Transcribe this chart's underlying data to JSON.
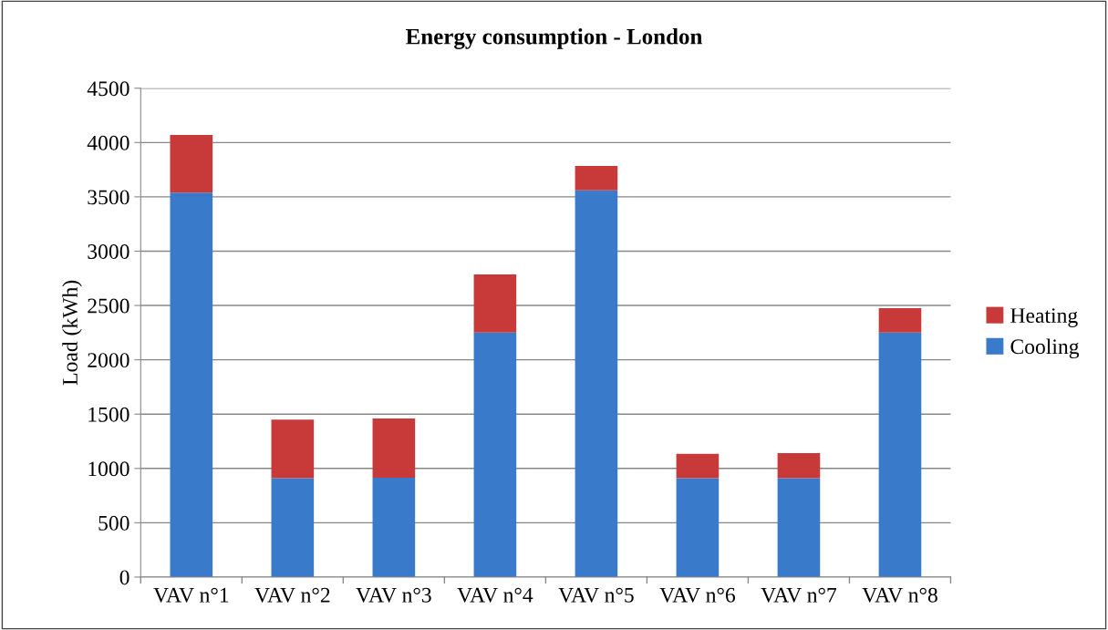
{
  "chart_data": {
    "type": "bar",
    "title": "Energy consumption - London",
    "ylabel": "Load (kWh)",
    "categories": [
      "VAV n°1",
      "VAV n°2",
      "VAV n°3",
      "VAV n°4",
      "VAV n°5",
      "VAV n°6",
      "VAV n°7",
      "VAV n°8"
    ],
    "stacked": true,
    "series": [
      {
        "name": "Cooling",
        "color": "#3a7acb",
        "values": [
          3540,
          910,
          915,
          2250,
          3560,
          910,
          910,
          2250
        ]
      },
      {
        "name": "Heating",
        "color": "#c83a3a",
        "values": [
          530,
          540,
          545,
          535,
          225,
          225,
          230,
          225
        ]
      }
    ],
    "ylim": [
      0,
      4500
    ],
    "yticks": [
      0,
      500,
      1000,
      1500,
      2000,
      2500,
      3000,
      3500,
      4000,
      4500
    ],
    "grid": "y",
    "legend": "right"
  }
}
